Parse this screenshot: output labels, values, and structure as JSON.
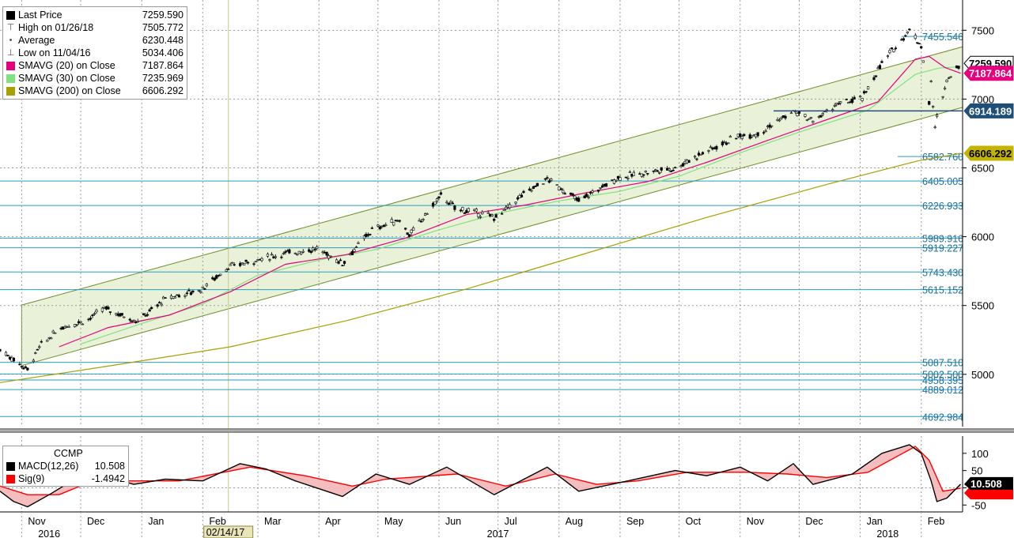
{
  "legend": {
    "items": [
      {
        "label": "Last Price",
        "value": "7259.590",
        "swatch": "#000000",
        "icon": "square-icon"
      },
      {
        "label": "High on 01/26/18",
        "value": "7505.772",
        "swatch": "",
        "icon": "high-marker-icon"
      },
      {
        "label": "Average",
        "value": "6230.448",
        "swatch": "",
        "icon": "average-marker-icon"
      },
      {
        "label": "Low on 11/04/16",
        "value": "5034.406",
        "swatch": "",
        "icon": "low-marker-icon"
      },
      {
        "label": "SMAVG (20) on Close",
        "value": "7187.864",
        "swatch": "#e6007e",
        "icon": "square-icon"
      },
      {
        "label": "SMAVG (30) on Close",
        "value": "7235.969",
        "swatch": "#7fe27f",
        "icon": "square-icon"
      },
      {
        "label": "SMAVG (200) on Close",
        "value": "6606.292",
        "swatch": "#a8a000",
        "icon": "square-icon"
      }
    ]
  },
  "macd_legend": {
    "title": "CCMP",
    "items": [
      {
        "label": "MACD(12,26)",
        "value": "10.508",
        "swatch": "#000000"
      },
      {
        "label": "Sig(9)",
        "value": "-1.4942",
        "swatch": "#ff0000"
      }
    ]
  },
  "colors": {
    "price": "#000000",
    "sma20": "#e6007e",
    "sma30": "#7fe27f",
    "sma200": "#a8a000",
    "channel_fill": "#e9f2d8",
    "channel_line": "#6b8e23",
    "hline": "#2a9bc6",
    "tag_blue": "#1f4e79"
  },
  "chart_data": {
    "type": "line",
    "title": "",
    "ylim": [
      4620,
      7720
    ],
    "y_ticks": [
      5000,
      5500,
      6000,
      6500,
      7000,
      7500
    ],
    "x_months": [
      {
        "label": "Nov",
        "date": "2016-11-01"
      },
      {
        "label": "Dec",
        "date": "2016-12-01"
      },
      {
        "label": "Jan",
        "date": "2017-01-01"
      },
      {
        "label": "Feb",
        "date": "2017-02-01"
      },
      {
        "label": "Mar",
        "date": "2017-03-01"
      },
      {
        "label": "Apr",
        "date": "2017-04-01"
      },
      {
        "label": "May",
        "date": "2017-05-01"
      },
      {
        "label": "Jun",
        "date": "2017-06-01"
      },
      {
        "label": "Jul",
        "date": "2017-07-01"
      },
      {
        "label": "Aug",
        "date": "2017-08-01"
      },
      {
        "label": "Sep",
        "date": "2017-09-01"
      },
      {
        "label": "Oct",
        "date": "2017-10-01"
      },
      {
        "label": "Nov",
        "date": "2017-11-01"
      },
      {
        "label": "Dec",
        "date": "2017-12-01"
      },
      {
        "label": "Jan",
        "date": "2018-01-01"
      },
      {
        "label": "Feb",
        "date": "2018-02-01"
      }
    ],
    "x_years": [
      {
        "label": "2016",
        "date": "2016-11-15"
      },
      {
        "label": "2017",
        "date": "2017-07-01"
      },
      {
        "label": "2018",
        "date": "2018-01-15"
      }
    ],
    "cursor": {
      "date": "2017-02-14",
      "label": "02/14/17"
    },
    "xlim": [
      "2016-10-21",
      "2018-02-22"
    ],
    "price_series": {
      "name": "Last Price",
      "points": [
        [
          "2016-10-21",
          5180
        ],
        [
          "2016-11-04",
          5034
        ],
        [
          "2016-11-10",
          5200
        ],
        [
          "2016-11-21",
          5340
        ],
        [
          "2016-12-05",
          5400
        ],
        [
          "2016-12-13",
          5480
        ],
        [
          "2016-12-30",
          5385
        ],
        [
          "2017-01-13",
          5550
        ],
        [
          "2017-01-31",
          5615
        ],
        [
          "2017-02-14",
          5780
        ],
        [
          "2017-02-28",
          5830
        ],
        [
          "2017-03-15",
          5880
        ],
        [
          "2017-03-31",
          5910
        ],
        [
          "2017-04-13",
          5810
        ],
        [
          "2017-04-28",
          6050
        ],
        [
          "2017-05-12",
          6125
        ],
        [
          "2017-05-17",
          6010
        ],
        [
          "2017-06-02",
          6300
        ],
        [
          "2017-06-09",
          6210
        ],
        [
          "2017-06-30",
          6140
        ],
        [
          "2017-07-14",
          6310
        ],
        [
          "2017-07-26",
          6420
        ],
        [
          "2017-08-11",
          6260
        ],
        [
          "2017-08-31",
          6430
        ],
        [
          "2017-09-12",
          6460
        ],
        [
          "2017-09-29",
          6500
        ],
        [
          "2017-10-13",
          6610
        ],
        [
          "2017-10-31",
          6730
        ],
        [
          "2017-11-10",
          6750
        ],
        [
          "2017-11-28",
          6910
        ],
        [
          "2017-12-08",
          6840
        ],
        [
          "2017-12-20",
          6960
        ],
        [
          "2018-01-02",
          7006
        ],
        [
          "2018-01-12",
          7260
        ],
        [
          "2018-01-26",
          7505
        ],
        [
          "2018-02-01",
          7385
        ],
        [
          "2018-02-05",
          6970
        ],
        [
          "2018-02-06",
          7120
        ],
        [
          "2018-02-08",
          6780
        ],
        [
          "2018-02-09",
          6870
        ],
        [
          "2018-02-14",
          7140
        ],
        [
          "2018-02-21",
          7260
        ]
      ]
    },
    "sma20": [
      [
        "2016-11-20",
        5200
      ],
      [
        "2016-12-15",
        5340
      ],
      [
        "2017-01-15",
        5430
      ],
      [
        "2017-02-15",
        5600
      ],
      [
        "2017-03-15",
        5800
      ],
      [
        "2017-04-15",
        5870
      ],
      [
        "2017-05-15",
        5990
      ],
      [
        "2017-06-15",
        6160
      ],
      [
        "2017-07-15",
        6230
      ],
      [
        "2017-08-15",
        6320
      ],
      [
        "2017-09-15",
        6400
      ],
      [
        "2017-10-15",
        6540
      ],
      [
        "2017-11-15",
        6700
      ],
      [
        "2017-12-15",
        6850
      ],
      [
        "2018-01-10",
        6980
      ],
      [
        "2018-01-29",
        7290
      ],
      [
        "2018-02-05",
        7310
      ],
      [
        "2018-02-13",
        7230
      ],
      [
        "2018-02-21",
        7188
      ]
    ],
    "sma30": [
      [
        "2016-12-01",
        5220
      ],
      [
        "2017-01-01",
        5370
      ],
      [
        "2017-02-01",
        5510
      ],
      [
        "2017-03-01",
        5720
      ],
      [
        "2017-04-01",
        5830
      ],
      [
        "2017-05-01",
        5910
      ],
      [
        "2017-06-01",
        6050
      ],
      [
        "2017-07-01",
        6170
      ],
      [
        "2017-08-01",
        6260
      ],
      [
        "2017-09-01",
        6330
      ],
      [
        "2017-10-01",
        6440
      ],
      [
        "2017-11-01",
        6610
      ],
      [
        "2017-12-01",
        6760
      ],
      [
        "2018-01-05",
        6920
      ],
      [
        "2018-01-29",
        7180
      ],
      [
        "2018-02-10",
        7225
      ],
      [
        "2018-02-21",
        7236
      ]
    ],
    "sma200": [
      [
        "2016-10-21",
        4940
      ],
      [
        "2016-12-15",
        5060
      ],
      [
        "2017-02-15",
        5200
      ],
      [
        "2017-04-15",
        5390
      ],
      [
        "2017-06-15",
        5620
      ],
      [
        "2017-08-15",
        5880
      ],
      [
        "2017-10-15",
        6140
      ],
      [
        "2017-12-15",
        6380
      ],
      [
        "2018-01-30",
        6550
      ],
      [
        "2018-02-21",
        6606
      ]
    ],
    "channel": {
      "upper": [
        [
          "2016-10-21",
          5460
        ],
        [
          "2018-02-22",
          7380
        ]
      ],
      "lower": [
        [
          "2016-10-21",
          5020
        ],
        [
          "2018-02-22",
          6940
        ]
      ]
    },
    "levels": [
      {
        "value": 7455.546,
        "label": "7455.546"
      },
      {
        "value": 6582.76,
        "label": "6582.760"
      },
      {
        "value": 6405.005,
        "label": "6405.005"
      },
      {
        "value": 6226.933,
        "label": "6226.933"
      },
      {
        "value": 5989.916,
        "label": "5989.916"
      },
      {
        "value": 5919.227,
        "label": "5919.227"
      },
      {
        "value": 5743.43,
        "label": "5743.430"
      },
      {
        "value": 5615.152,
        "label": "5615.152"
      },
      {
        "value": 5087.51,
        "label": "5087.510"
      },
      {
        "value": 5002.5,
        "label": "5002.500"
      },
      {
        "value": 4958.395,
        "label": "4958.395"
      },
      {
        "value": 4889.012,
        "label": "4889.012"
      },
      {
        "value": 4692.984,
        "label": "4692.984"
      }
    ],
    "tags": [
      {
        "value": 7259.59,
        "label": "7259.590",
        "style": "white"
      },
      {
        "value": 7187.864,
        "label": "7187.864",
        "style": "magenta"
      },
      {
        "value": 6914.189,
        "label": "6914.189",
        "style": "blue"
      },
      {
        "value": 6606.292,
        "label": "6606.292",
        "style": "olive"
      }
    ],
    "macd": {
      "ylim": [
        -70,
        150
      ],
      "y_ticks": [
        -50,
        0,
        50,
        100
      ],
      "macd_line": [
        [
          "2016-10-21",
          -10
        ],
        [
          "2016-10-28",
          -40
        ],
        [
          "2016-11-04",
          -55
        ],
        [
          "2016-11-15",
          -20
        ],
        [
          "2016-11-28",
          25
        ],
        [
          "2016-12-12",
          35
        ],
        [
          "2016-12-28",
          10
        ],
        [
          "2017-01-13",
          25
        ],
        [
          "2017-02-01",
          20
        ],
        [
          "2017-02-20",
          70
        ],
        [
          "2017-03-05",
          55
        ],
        [
          "2017-03-20",
          20
        ],
        [
          "2017-04-13",
          -25
        ],
        [
          "2017-04-30",
          40
        ],
        [
          "2017-05-17",
          10
        ],
        [
          "2017-06-05",
          60
        ],
        [
          "2017-06-29",
          -20
        ],
        [
          "2017-07-26",
          60
        ],
        [
          "2017-08-11",
          -10
        ],
        [
          "2017-09-05",
          20
        ],
        [
          "2017-09-29",
          50
        ],
        [
          "2017-10-15",
          35
        ],
        [
          "2017-11-01",
          60
        ],
        [
          "2017-11-15",
          20
        ],
        [
          "2017-11-28",
          70
        ],
        [
          "2017-12-08",
          10
        ],
        [
          "2017-12-28",
          40
        ],
        [
          "2018-01-12",
          100
        ],
        [
          "2018-01-26",
          125
        ],
        [
          "2018-02-01",
          100
        ],
        [
          "2018-02-06",
          20
        ],
        [
          "2018-02-09",
          -40
        ],
        [
          "2018-02-14",
          -30
        ],
        [
          "2018-02-21",
          10.5
        ]
      ],
      "signal_line": [
        [
          "2016-10-21",
          5
        ],
        [
          "2016-11-04",
          -20
        ],
        [
          "2016-11-20",
          -20
        ],
        [
          "2016-12-05",
          15
        ],
        [
          "2016-12-25",
          20
        ],
        [
          "2017-01-20",
          20
        ],
        [
          "2017-02-25",
          60
        ],
        [
          "2017-03-25",
          35
        ],
        [
          "2017-04-18",
          5
        ],
        [
          "2017-05-05",
          25
        ],
        [
          "2017-06-10",
          40
        ],
        [
          "2017-07-05",
          5
        ],
        [
          "2017-07-30",
          40
        ],
        [
          "2017-08-20",
          10
        ],
        [
          "2017-09-10",
          20
        ],
        [
          "2017-10-05",
          45
        ],
        [
          "2017-11-05",
          45
        ],
        [
          "2017-11-25",
          40
        ],
        [
          "2017-12-15",
          30
        ],
        [
          "2018-01-05",
          45
        ],
        [
          "2018-01-29",
          120
        ],
        [
          "2018-02-05",
          80
        ],
        [
          "2018-02-12",
          -10
        ],
        [
          "2018-02-21",
          -1.49
        ]
      ]
    }
  }
}
